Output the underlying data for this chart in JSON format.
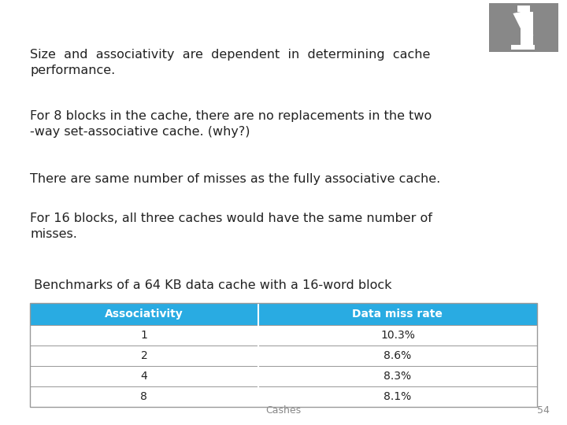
{
  "background_color": "#ffffff",
  "text_paragraphs": [
    "Size  and  associativity  are  dependent  in  determining  cache\nperformance.",
    "For 8 blocks in the cache, there are no replacements in the two\n-way set-associative cache. (why?)",
    "There are same number of misses as the fully associative cache.",
    "For 16 blocks, all three caches would have the same number of\nmisses."
  ],
  "benchmark_title": " Benchmarks of a 64 KB data cache with a 16-word block",
  "table_headers": [
    "Associativity",
    "Data miss rate"
  ],
  "table_data": [
    [
      "1",
      "10.3%"
    ],
    [
      "2",
      "8.6%"
    ],
    [
      "4",
      "8.3%"
    ],
    [
      "8",
      "8.1%"
    ]
  ],
  "header_bg_color": "#29ABE2",
  "header_text_color": "#ffffff",
  "table_border_color": "#999999",
  "footer_text": "Cashes",
  "footer_page": "54",
  "text_color": "#222222",
  "font_size_body": 11.5,
  "font_size_table_header": 10,
  "font_size_table_body": 10,
  "font_size_footer": 9,
  "font_size_benchmark": 11.5,
  "logo_bg": "#888888"
}
